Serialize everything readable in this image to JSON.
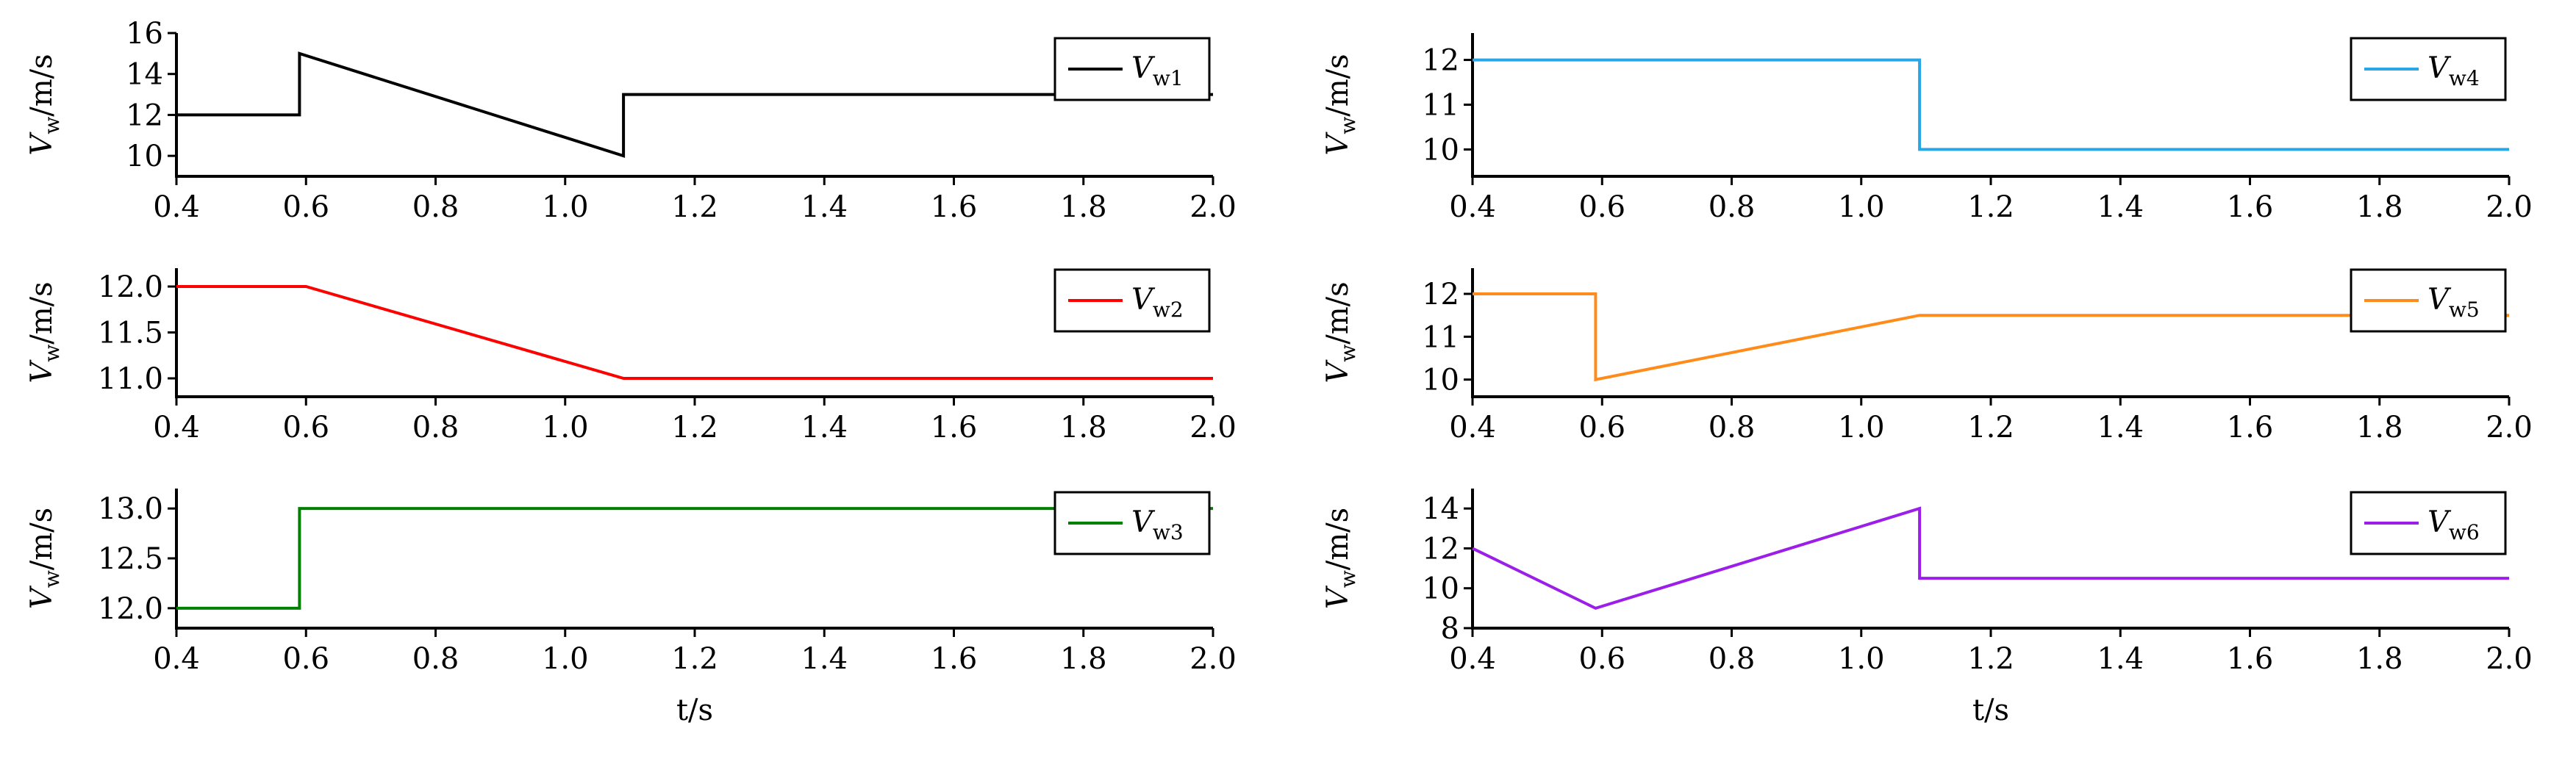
{
  "chart_data": [
    {
      "type": "line",
      "xlim": [
        0.4,
        2.0
      ],
      "ylim": [
        9,
        16
      ],
      "yticks": [
        10,
        12,
        14,
        16
      ],
      "xticks": [
        "0.4",
        "0.6",
        "0.8",
        "1.0",
        "1.2",
        "1.4",
        "1.6",
        "1.8",
        "2.0"
      ],
      "ylabel_main": "V",
      "ylabel_sub": "w",
      "ylabel_rest": "/m/s",
      "xlabel": "",
      "legend": {
        "main": "V",
        "sub": "w1"
      },
      "color": "#000000",
      "x": [
        0.4,
        0.59,
        0.59,
        1.09,
        1.09,
        2.0
      ],
      "y": [
        12,
        12,
        15,
        10,
        13,
        13
      ]
    },
    {
      "type": "line",
      "xlim": [
        0.4,
        2.0
      ],
      "ylim": [
        10.8,
        12.2
      ],
      "yticks": [
        11.0,
        11.5,
        12.0
      ],
      "xticks": [
        "0.4",
        "0.6",
        "0.8",
        "1.0",
        "1.2",
        "1.4",
        "1.6",
        "1.8",
        "2.0"
      ],
      "ylabel_main": "V",
      "ylabel_sub": "w",
      "ylabel_rest": "/m/s",
      "xlabel": "",
      "legend": {
        "main": "V",
        "sub": "w2"
      },
      "color": "#ff0000",
      "x": [
        0.4,
        0.6,
        1.09,
        2.0
      ],
      "y": [
        12,
        12,
        11,
        11
      ]
    },
    {
      "type": "line",
      "xlim": [
        0.4,
        2.0
      ],
      "ylim": [
        11.8,
        13.2
      ],
      "yticks": [
        12.0,
        12.5,
        13.0
      ],
      "xticks": [
        "0.4",
        "0.6",
        "0.8",
        "1.0",
        "1.2",
        "1.4",
        "1.6",
        "1.8",
        "2.0"
      ],
      "ylabel_main": "V",
      "ylabel_sub": "w",
      "ylabel_rest": "/m/s",
      "xlabel": "t/s",
      "legend": {
        "main": "V",
        "sub": "w3"
      },
      "color": "#008000",
      "x": [
        0.4,
        0.59,
        0.59,
        2.0
      ],
      "y": [
        12,
        12,
        13,
        13
      ]
    },
    {
      "type": "line",
      "xlim": [
        0.4,
        2.0
      ],
      "ylim": [
        9.4,
        12.6
      ],
      "yticks": [
        10,
        11,
        12
      ],
      "xticks": [
        "0.4",
        "0.6",
        "0.8",
        "1.0",
        "1.2",
        "1.4",
        "1.6",
        "1.8",
        "2.0"
      ],
      "ylabel_main": "V",
      "ylabel_sub": "w",
      "ylabel_rest": "/m/s",
      "xlabel": "",
      "legend": {
        "main": "V",
        "sub": "w4"
      },
      "color": "#2aa6e6",
      "x": [
        0.4,
        1.09,
        1.09,
        2.0
      ],
      "y": [
        12,
        12,
        10,
        10
      ]
    },
    {
      "type": "line",
      "xlim": [
        0.4,
        2.0
      ],
      "ylim": [
        9.6,
        12.6
      ],
      "yticks": [
        10,
        11,
        12
      ],
      "xticks": [
        "0.4",
        "0.6",
        "0.8",
        "1.0",
        "1.2",
        "1.4",
        "1.6",
        "1.8",
        "2.0"
      ],
      "ylabel_main": "V",
      "ylabel_sub": "w",
      "ylabel_rest": "/m/s",
      "xlabel": "",
      "legend": {
        "main": "V",
        "sub": "w5"
      },
      "color": "#ff8c1a",
      "x": [
        0.4,
        0.59,
        0.59,
        1.09,
        2.0
      ],
      "y": [
        12,
        12,
        10,
        11.5,
        11.5
      ]
    },
    {
      "type": "line",
      "xlim": [
        0.4,
        2.0
      ],
      "ylim": [
        8,
        15
      ],
      "yticks": [
        8,
        10,
        12,
        14
      ],
      "xticks": [
        "0.4",
        "0.6",
        "0.8",
        "1.0",
        "1.2",
        "1.4",
        "1.6",
        "1.8",
        "2.0"
      ],
      "ylabel_main": "V",
      "ylabel_sub": "w",
      "ylabel_rest": "/m/s",
      "xlabel": "t/s",
      "legend": {
        "main": "V",
        "sub": "w6"
      },
      "color": "#9b1fe8",
      "x": [
        0.4,
        0.59,
        1.09,
        1.09,
        2.0
      ],
      "y": [
        12,
        9,
        14,
        10.5,
        10.5
      ]
    }
  ]
}
